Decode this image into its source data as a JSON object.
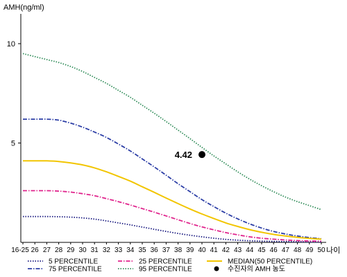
{
  "chart_data": {
    "type": "line",
    "ylabel": "AMH(ng/ml)",
    "xlabel": "나이",
    "ylim": [
      0,
      11.5
    ],
    "y_ticks": [
      5,
      10
    ],
    "categories": [
      "16-25",
      "26",
      "27",
      "28",
      "29",
      "30",
      "31",
      "32",
      "33",
      "34",
      "35",
      "36",
      "37",
      "38",
      "39",
      "40",
      "41",
      "42",
      "43",
      "44",
      "45",
      "46",
      "47",
      "48",
      "49",
      "50"
    ],
    "series": [
      {
        "name": "5 PERCENTILE",
        "color": "#1a1a80",
        "style": "dotted",
        "values": [
          1.3,
          1.3,
          1.3,
          1.29,
          1.27,
          1.23,
          1.17,
          1.08,
          0.98,
          0.88,
          0.77,
          0.66,
          0.55,
          0.45,
          0.36,
          0.28,
          0.21,
          0.15,
          0.11,
          0.08,
          0.06,
          0.05,
          0.04,
          0.03,
          0.02,
          0.02
        ]
      },
      {
        "name": "75 PERCENTILE",
        "color": "#2c3ea6",
        "style": "dashdot",
        "values": [
          6.2,
          6.2,
          6.2,
          6.15,
          6.0,
          5.8,
          5.55,
          5.28,
          4.95,
          4.6,
          4.2,
          3.8,
          3.38,
          2.95,
          2.55,
          2.15,
          1.8,
          1.47,
          1.18,
          0.93,
          0.72,
          0.55,
          0.42,
          0.32,
          0.24,
          0.18
        ]
      },
      {
        "name": "25 PERCENTILE",
        "color": "#e0238c",
        "style": "dashdot",
        "values": [
          2.6,
          2.6,
          2.6,
          2.58,
          2.53,
          2.45,
          2.35,
          2.2,
          2.05,
          1.88,
          1.7,
          1.52,
          1.33,
          1.14,
          0.95,
          0.78,
          0.63,
          0.49,
          0.38,
          0.28,
          0.21,
          0.16,
          0.12,
          0.09,
          0.07,
          0.06
        ]
      },
      {
        "name": "95 PERCENTILE",
        "color": "#2e8b57",
        "style": "dotted",
        "values": [
          9.5,
          9.35,
          9.2,
          9.05,
          8.85,
          8.6,
          8.3,
          8.0,
          7.65,
          7.3,
          6.9,
          6.5,
          6.08,
          5.65,
          5.22,
          4.78,
          4.35,
          3.95,
          3.55,
          3.18,
          2.85,
          2.55,
          2.28,
          2.05,
          1.85,
          1.65
        ]
      },
      {
        "name": "MEDIAN(50 PERCENTILE)",
        "color": "#f2c500",
        "style": "solid",
        "values": [
          4.1,
          4.1,
          4.1,
          4.07,
          4.0,
          3.9,
          3.75,
          3.55,
          3.32,
          3.08,
          2.8,
          2.52,
          2.23,
          1.95,
          1.68,
          1.43,
          1.2,
          0.98,
          0.8,
          0.64,
          0.51,
          0.4,
          0.32,
          0.25,
          0.2,
          0.16
        ]
      }
    ],
    "highlight": {
      "name": "수진자의 AMH 농도",
      "x": "40",
      "y": 4.42,
      "label": "4.42",
      "color": "#000000"
    },
    "legend_position": "bottom"
  }
}
